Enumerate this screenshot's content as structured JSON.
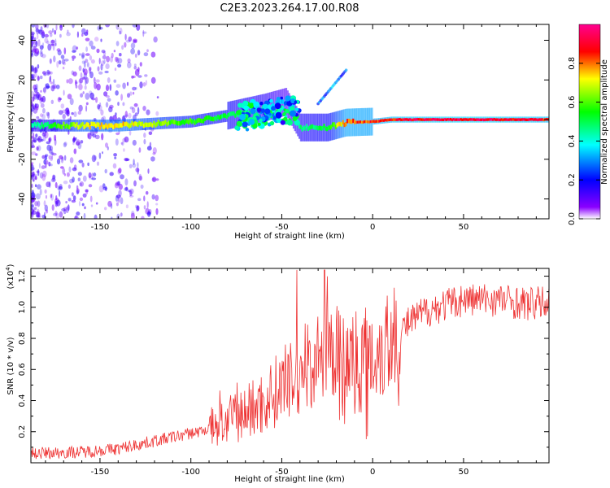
{
  "title": "C2E3.2023.264.17.00.R08",
  "chart_data": [
    {
      "type": "heatmap",
      "xlabel": "Height of straight line (km)",
      "ylabel": "Frequency (Hz)",
      "xlim": [
        -188,
        97
      ],
      "ylim": [
        -50,
        48
      ],
      "xticks": [
        -150,
        -100,
        -50,
        0,
        50
      ],
      "yticks": [
        -40,
        -20,
        0,
        20,
        40
      ],
      "colorbar": {
        "label": "Normalized spectral amplitude",
        "range": [
          0,
          1
        ],
        "ticks": [
          0.0,
          0.2,
          0.4,
          0.6,
          0.8
        ],
        "colors": [
          "#ffffff",
          "#8a00ff",
          "#0000ff",
          "#00ffff",
          "#00ff00",
          "#ffff00",
          "#ff0000",
          "#ff0090"
        ]
      },
      "ridge": [
        {
          "x": -188,
          "y": -3,
          "a": 0.45
        },
        {
          "x": -160,
          "y": -3,
          "a": 0.75
        },
        {
          "x": -140,
          "y": -3,
          "a": 0.8
        },
        {
          "x": -120,
          "y": -2,
          "a": 0.7
        },
        {
          "x": -100,
          "y": -1,
          "a": 0.6
        },
        {
          "x": -80,
          "y": 2,
          "a": 0.55
        },
        {
          "x": -60,
          "y": 6,
          "a": 0.45
        },
        {
          "x": -48,
          "y": 9,
          "a": 0.35
        },
        {
          "x": -40,
          "y": -4,
          "a": 0.5
        },
        {
          "x": -25,
          "y": -4,
          "a": 0.55
        },
        {
          "x": -15,
          "y": -1.5,
          "a": 0.9
        },
        {
          "x": 0,
          "y": -1,
          "a": 0.9
        },
        {
          "x": 10,
          "y": 0,
          "a": 0.95
        },
        {
          "x": 50,
          "y": 0,
          "a": 1.0
        },
        {
          "x": 97,
          "y": 0,
          "a": 0.95
        }
      ]
    },
    {
      "type": "line",
      "xlabel": "Height of straight line (km)",
      "ylabel": "SNR (10 * v/v)",
      "y_multiplier": "(x10",
      "y_multiplier_exp": "4",
      "y_multiplier_close": ")",
      "xlim": [
        -188,
        97
      ],
      "ylim": [
        0,
        1.25
      ],
      "xticks": [
        -150,
        -100,
        -50,
        0,
        50
      ],
      "yticks": [
        0.2,
        0.4,
        0.6,
        0.8,
        1.0,
        1.2
      ],
      "color": "#ee3333",
      "envelope": [
        {
          "x": -188,
          "y": 0.02
        },
        {
          "x": -160,
          "y": 0.03
        },
        {
          "x": -140,
          "y": 0.05
        },
        {
          "x": -120,
          "y": 0.1
        },
        {
          "x": -100,
          "y": 0.15
        },
        {
          "x": -80,
          "y": 0.2
        },
        {
          "x": -60,
          "y": 0.3
        },
        {
          "x": -50,
          "y": 0.4
        },
        {
          "x": -40,
          "y": 0.45
        },
        {
          "x": -30,
          "y": 0.55
        },
        {
          "x": -20,
          "y": 0.6
        },
        {
          "x": -10,
          "y": 0.65
        },
        {
          "x": 0,
          "y": 0.7
        },
        {
          "x": 10,
          "y": 0.78
        },
        {
          "x": 20,
          "y": 0.9
        },
        {
          "x": 30,
          "y": 0.98
        },
        {
          "x": 50,
          "y": 1.05
        },
        {
          "x": 70,
          "y": 1.05
        },
        {
          "x": 85,
          "y": 1.02
        },
        {
          "x": 97,
          "y": 1.03
        }
      ]
    }
  ]
}
